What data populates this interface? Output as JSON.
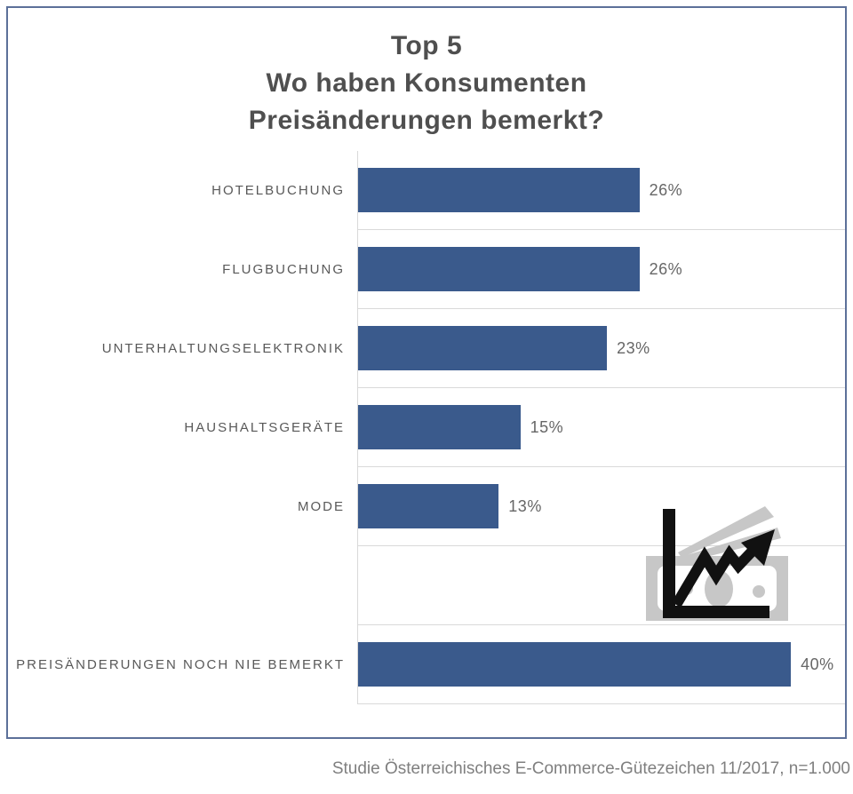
{
  "chart_data": {
    "type": "bar",
    "orientation": "horizontal",
    "title": "Top 5 Wo haben Konsumenten Preisänderungen bemerkt?",
    "title_lines": [
      "Top 5",
      "Wo haben Konsumenten",
      "Preisänderungen bemerkt?"
    ],
    "categories": [
      "HOTELBUCHUNG",
      "FLUGBUCHUNG",
      "UNTERHALTUNGSELEKTRONIK",
      "HAUSHALTSGERÄTE",
      "MODE",
      "",
      "PREISÄNDERUNGEN NOCH NIE BEMERKT"
    ],
    "values": [
      26,
      26,
      23,
      15,
      13,
      null,
      40
    ],
    "value_labels": [
      "26%",
      "26%",
      "23%",
      "15%",
      "13%",
      "",
      "40%"
    ],
    "xlabel": "",
    "ylabel": "",
    "xlim": [
      0,
      45
    ],
    "grid": "row-separators-horizontal",
    "legend": "none",
    "data_labels": "outside-end"
  },
  "icon": {
    "name": "rising-prices-money-chart-icon",
    "foreground": "#111111",
    "background_gray": "#c7c7c7"
  },
  "footer": {
    "text": "Studie Österreichisches E-Commerce-Gütezeichen 11/2017, n=1.000"
  },
  "colors": {
    "background": "#ffffff",
    "frame_border": "#5c7099",
    "bar": "#3a5a8c",
    "gridline": "#d9d9d9",
    "axis_line": "#d9d9d9",
    "category_label": "#595959",
    "value_label": "#666666",
    "title": "#4f4f4f",
    "footer": "#7f7f7f"
  }
}
